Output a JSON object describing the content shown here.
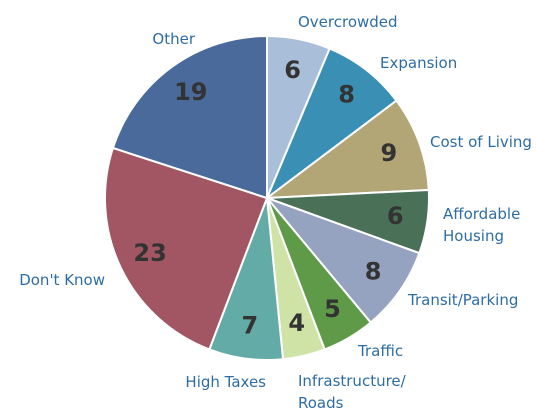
{
  "chart_data": {
    "type": "pie",
    "categories": [
      "Overcrowded",
      "Expansion",
      "Cost of Living",
      "Affordable\nHousing",
      "Transit/Parking",
      "Traffic",
      "Infrastructure/\nRoads",
      "High Taxes",
      "Don't Know",
      "Other"
    ],
    "values": [
      6,
      8,
      9,
      6,
      8,
      5,
      4,
      7,
      23,
      19
    ],
    "colors": [
      "#a9bfd9",
      "#3a8fb5",
      "#b2a677",
      "#4a7158",
      "#95a3c0",
      "#5e9a47",
      "#cfe3a6",
      "#63aba6",
      "#a25663",
      "#496a9a"
    ]
  }
}
